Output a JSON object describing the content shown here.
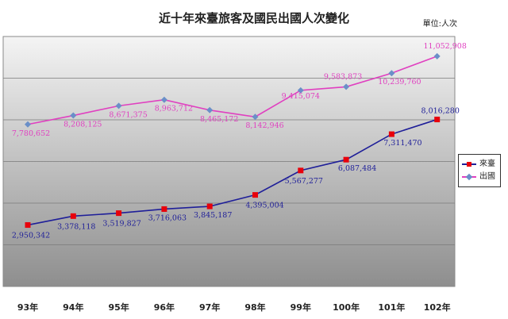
{
  "title": "近十年來臺旅客及國民出國人次變化",
  "unit_label": "單位:人次",
  "colors": {
    "inbound": "#1f1f99",
    "inbound_marker": "#e8000b",
    "outbound": "#e040c0",
    "outbound_marker": "#6a8fc8",
    "plot_top": "#f4f4f4",
    "plot_bottom": "#8e8e8e"
  },
  "chart_data": {
    "type": "line",
    "categories": [
      "93年",
      "94年",
      "95年",
      "96年",
      "97年",
      "98年",
      "99年",
      "100年",
      "101年",
      "102年"
    ],
    "ylim": [
      0,
      12000000
    ],
    "grid": true,
    "legend_position": "right",
    "series": [
      {
        "name": "來臺",
        "values": [
          2950342,
          3378118,
          3519827,
          3716063,
          3845187,
          4395004,
          5567277,
          6087484,
          7311470,
          8016280
        ],
        "labels": [
          "2,950,342",
          "3,378,118",
          "3,519,827",
          "3,716,063",
          "3,845,187",
          "4,395,004",
          "5,567,277",
          "6,087,484",
          "7,311,470",
          "8,016,280"
        ]
      },
      {
        "name": "出國",
        "values": [
          7780652,
          8208125,
          8671375,
          8963712,
          8465172,
          8142946,
          9415074,
          9583873,
          10239760,
          11052908
        ],
        "labels": [
          "7,780,652",
          "8,208,125",
          "8,671,375",
          "8,963,712",
          "8,465,172",
          "8,142,946",
          "9,415,074",
          "9,583,873",
          "10,239,760",
          "11,052,908"
        ]
      }
    ]
  }
}
